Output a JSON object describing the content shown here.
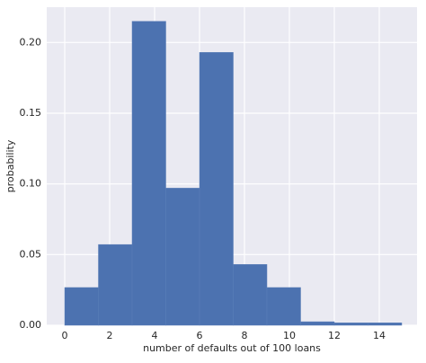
{
  "chart_data": {
    "type": "histogram",
    "xlabel": "number of defaults out of 100 loans",
    "ylabel": "probability",
    "bins": [
      0,
      1.5,
      3,
      4.5,
      6,
      7.5,
      9,
      10.5,
      12,
      13.5,
      15
    ],
    "values": [
      0.0267,
      0.0571,
      0.215,
      0.097,
      0.193,
      0.043,
      0.0267,
      0.0025,
      0.0017,
      0.0017
    ],
    "color": "#4c72b0",
    "xlim": [
      -0.8,
      15.68
    ],
    "ylim": [
      0,
      0.225
    ],
    "xticks": [
      0,
      2,
      4,
      6,
      8,
      10,
      12,
      14
    ],
    "yticks": [
      {
        "value": 0,
        "label": "0.00"
      },
      {
        "value": 0.05,
        "label": "0.05"
      },
      {
        "value": 0.1,
        "label": "0.10"
      },
      {
        "value": 0.15,
        "label": "0.15"
      },
      {
        "value": 0.2,
        "label": "0.20"
      }
    ],
    "grid": true
  }
}
